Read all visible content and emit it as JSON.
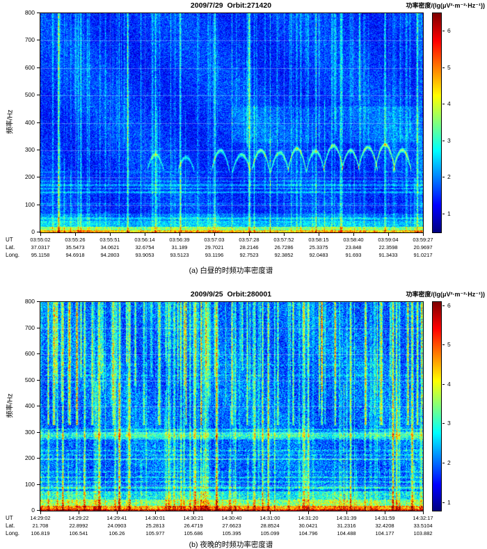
{
  "chart_data": [
    {
      "type": "heatmap",
      "panel": "a",
      "title": "2009/7/29  Orbit:271420",
      "caption": "(a) 白昼的时频功率密度谱",
      "colorbar_label": "功率密度/(lg(μV²·m⁻²·Hz⁻¹))",
      "ylabel": "频率/Hz",
      "ylim": [
        0,
        800
      ],
      "y_ticks": [
        0,
        100,
        200,
        300,
        400,
        500,
        600,
        700,
        800
      ],
      "colorbar_ticks": [
        1,
        2,
        3,
        4,
        5,
        6
      ],
      "colorbar_range": [
        0.5,
        6.5
      ],
      "colormap": "jet",
      "grid": true,
      "description": "Daytime time-frequency power spectral density spectrogram: dark-blue background with thin cyan/green vertical burst streaks, bright yellow-green band below ~20 Hz, faint horizontal lines near 50-220 Hz and rising whistler-like arcs near 230-330 Hz in the right half.",
      "x_axis_rows": [
        {
          "label": "UT",
          "values": [
            "03:55:02",
            "03:55:26",
            "03:55:51",
            "03:56:14",
            "03:56:39",
            "03:57:03",
            "03:57:28",
            "03:57:52",
            "03:58:15",
            "03:58:40",
            "03:59:04",
            "03:59:27"
          ]
        },
        {
          "label": "Lat.",
          "values": [
            "37.0317",
            "35.5473",
            "34.0621",
            "32.6754",
            "31.189",
            "29.7021",
            "28.2146",
            "26.7286",
            "25.3375",
            "23.848",
            "22.3598",
            "20.9697"
          ]
        },
        {
          "label": "Long.",
          "values": [
            "95.1158",
            "94.6918",
            "94.2803",
            "93.9053",
            "93.5123",
            "93.1196",
            "92.7523",
            "92.3852",
            "92.0483",
            "91.693",
            "91.3433",
            "91.0217"
          ]
        }
      ],
      "render": {
        "seed": 20090729,
        "base": 1.55,
        "noise": 0.55,
        "bands": [
          {
            "f0": 0,
            "f1": 10,
            "add": 3.0
          },
          {
            "f0": 10,
            "f1": 22,
            "add": 2.0
          },
          {
            "f0": 22,
            "f1": 45,
            "add": 0.9
          },
          {
            "f0": 45,
            "f1": 70,
            "add": 0.4
          }
        ],
        "hlines": [
          {
            "f": 52,
            "add": 0.8,
            "w": 4
          },
          {
            "f": 105,
            "add": 0.45,
            "w": 3
          },
          {
            "f": 148,
            "add": 0.85,
            "w": 4
          },
          {
            "f": 161,
            "add": 0.7,
            "w": 3
          },
          {
            "f": 174,
            "add": 0.85,
            "w": 4
          },
          {
            "f": 188,
            "add": 0.5,
            "w": 3
          },
          {
            "f": 222,
            "add": 0.35,
            "w": 3
          }
        ],
        "streaks": {
          "count": 110,
          "strength": [
            0.25,
            0.85
          ],
          "max_width": 1.6,
          "partial_f0": 250
        },
        "bright_streaks": [
          {
            "x": 0.047,
            "add": 2.4,
            "w": 2
          },
          {
            "x": 0.105,
            "add": 1.2,
            "w": 2
          },
          {
            "x": 0.155,
            "add": 0.9,
            "w": 1
          },
          {
            "x": 0.205,
            "add": 1.1,
            "w": 1
          },
          {
            "x": 0.228,
            "add": 1.5,
            "w": 2
          },
          {
            "x": 0.262,
            "add": 1.0,
            "w": 1
          },
          {
            "x": 0.3,
            "add": 1.2,
            "w": 2
          },
          {
            "x": 0.34,
            "add": 0.9,
            "w": 1
          },
          {
            "x": 0.365,
            "add": 1.4,
            "w": 2
          },
          {
            "x": 0.41,
            "add": 1.0,
            "w": 1
          },
          {
            "x": 0.455,
            "add": 1.1,
            "w": 1
          },
          {
            "x": 0.5,
            "add": 1.0,
            "w": 1
          },
          {
            "x": 0.545,
            "add": 1.2,
            "w": 2
          },
          {
            "x": 0.6,
            "add": 1.0,
            "w": 1
          },
          {
            "x": 0.655,
            "add": 1.1,
            "w": 1
          },
          {
            "x": 0.72,
            "add": 1.0,
            "w": 1
          },
          {
            "x": 0.785,
            "add": 1.3,
            "w": 2
          },
          {
            "x": 0.845,
            "add": 1.1,
            "w": 1
          },
          {
            "x": 0.9,
            "add": 1.4,
            "w": 2
          },
          {
            "x": 0.955,
            "add": 1.2,
            "w": 1
          },
          {
            "x": 0.985,
            "add": 1.5,
            "w": 2
          }
        ],
        "arcs": [
          {
            "x": 0.3,
            "f_peak": 285,
            "f_base": 235,
            "hw": 0.02,
            "add": 1.2
          },
          {
            "x": 0.38,
            "f_peak": 275,
            "f_base": 230,
            "hw": 0.02,
            "add": 1.2
          },
          {
            "x": 0.47,
            "f_peak": 300,
            "f_base": 235,
            "hw": 0.022,
            "add": 1.7
          },
          {
            "x": 0.525,
            "f_peak": 285,
            "f_base": 230,
            "hw": 0.022,
            "add": 1.6
          },
          {
            "x": 0.575,
            "f_peak": 300,
            "f_base": 235,
            "hw": 0.022,
            "add": 1.7
          },
          {
            "x": 0.625,
            "f_peak": 292,
            "f_base": 232,
            "hw": 0.022,
            "add": 1.6
          },
          {
            "x": 0.67,
            "f_peak": 308,
            "f_base": 238,
            "hw": 0.022,
            "add": 1.8
          },
          {
            "x": 0.718,
            "f_peak": 298,
            "f_base": 233,
            "hw": 0.022,
            "add": 1.7
          },
          {
            "x": 0.765,
            "f_peak": 318,
            "f_base": 240,
            "hw": 0.024,
            "add": 1.9
          },
          {
            "x": 0.81,
            "f_peak": 300,
            "f_base": 235,
            "hw": 0.022,
            "add": 1.8
          },
          {
            "x": 0.855,
            "f_peak": 312,
            "f_base": 238,
            "hw": 0.024,
            "add": 2.0
          },
          {
            "x": 0.9,
            "f_peak": 322,
            "f_base": 242,
            "hw": 0.024,
            "add": 2.0
          },
          {
            "x": 0.945,
            "f_peak": 302,
            "f_base": 236,
            "hw": 0.022,
            "add": 1.9
          }
        ],
        "haze": {
          "x0": 0.5,
          "x1": 0.99,
          "f0": 330,
          "f1": 460,
          "add": 0.3
        }
      }
    },
    {
      "type": "heatmap",
      "panel": "b",
      "title": "2009/9/25  Orbit:280001",
      "caption": "(b) 夜晚的时频功率密度谱",
      "colorbar_label": "功率密度/(lg(μV²·m⁻²·Hz⁻¹))",
      "ylabel": "频率/Hz",
      "ylim": [
        0,
        800
      ],
      "y_ticks": [
        0,
        100,
        200,
        300,
        400,
        500,
        600,
        700,
        800
      ],
      "colorbar_ticks": [
        1,
        2,
        3,
        4,
        5,
        6
      ],
      "colorbar_range": [
        0.8,
        6.1
      ],
      "colormap": "jet",
      "grid": true,
      "description": "Nighttime time-frequency power spectral density spectrogram: much brighter activity, dense cyan/green/yellow vertical streaks from ~330-800 Hz, strong green band near 280-310 Hz, horizontal structure near 90-230 Hz and an intense red/orange band below ~25 Hz.",
      "x_axis_rows": [
        {
          "label": "UT",
          "values": [
            "14:29:02",
            "14:29:22",
            "14:29:41",
            "14:30:01",
            "14:30:21",
            "14:30:40",
            "14:31:00",
            "14:31:20",
            "14:31:39",
            "14:31:59",
            "14:32:17"
          ]
        },
        {
          "label": "Lat.",
          "values": [
            "21.708",
            "22.8992",
            "24.0903",
            "25.2813",
            "26.4719",
            "27.6623",
            "28.8524",
            "30.0421",
            "31.2316",
            "32.4208",
            "33.5104"
          ]
        },
        {
          "label": "Long.",
          "values": [
            "106.819",
            "106.541",
            "106.26",
            "105.977",
            "105.686",
            "105.395",
            "105.099",
            "104.796",
            "104.488",
            "104.177",
            "103.882"
          ]
        }
      ],
      "render": {
        "seed": 20090925,
        "base": 2.0,
        "noise": 0.7,
        "bands": [
          {
            "f0": 0,
            "f1": 8,
            "add": 3.6
          },
          {
            "f0": 8,
            "f1": 20,
            "add": 2.6
          },
          {
            "f0": 20,
            "f1": 45,
            "add": 1.5
          },
          {
            "f0": 45,
            "f1": 75,
            "add": 0.8
          }
        ],
        "hlines": [
          {
            "f": 90,
            "add": 1.0,
            "w": 5
          },
          {
            "f": 112,
            "add": 0.7,
            "w": 3
          },
          {
            "f": 130,
            "add": 0.8,
            "w": 3
          },
          {
            "f": 150,
            "add": 0.5,
            "w": 3
          },
          {
            "f": 198,
            "add": 0.8,
            "w": 3
          },
          {
            "f": 215,
            "add": 0.6,
            "w": 3
          },
          {
            "f": 232,
            "add": 0.5,
            "w": 3
          },
          {
            "f": 290,
            "add": 1.1,
            "w": 16
          },
          {
            "f": 312,
            "add": 0.6,
            "w": 5
          },
          {
            "f": 520,
            "add": 0.35,
            "w": 3
          },
          {
            "f": 560,
            "add": 0.3,
            "w": 3
          }
        ],
        "streaks": {
          "count": 150,
          "strength": [
            0.4,
            1.4
          ],
          "max_width": 2.2,
          "partial_f0": 330
        },
        "bright_streaks": [
          {
            "x": 0.02,
            "add": 2.0,
            "w": 2,
            "f0": 330
          },
          {
            "x": 0.035,
            "add": 2.4,
            "w": 3,
            "f0": 330
          },
          {
            "x": 0.058,
            "add": 2.0,
            "w": 2
          },
          {
            "x": 0.075,
            "add": 2.6,
            "w": 3,
            "f0": 330
          },
          {
            "x": 0.095,
            "add": 2.2,
            "w": 2,
            "f0": 330
          },
          {
            "x": 0.115,
            "add": 1.8,
            "w": 2
          },
          {
            "x": 0.135,
            "add": 2.0,
            "w": 2,
            "f0": 330
          },
          {
            "x": 0.19,
            "add": 1.6,
            "w": 2,
            "f0": 330
          },
          {
            "x": 0.23,
            "add": 1.8,
            "w": 2
          },
          {
            "x": 0.27,
            "add": 1.5,
            "w": 2,
            "f0": 330
          },
          {
            "x": 0.31,
            "add": 2.0,
            "w": 3,
            "f0": 330
          },
          {
            "x": 0.335,
            "add": 1.7,
            "w": 2
          },
          {
            "x": 0.38,
            "add": 1.5,
            "w": 2,
            "f0": 330
          },
          {
            "x": 0.42,
            "add": 1.8,
            "w": 2,
            "f0": 330
          },
          {
            "x": 0.46,
            "add": 1.6,
            "w": 2
          },
          {
            "x": 0.5,
            "add": 1.9,
            "w": 2,
            "f0": 330
          },
          {
            "x": 0.54,
            "add": 1.6,
            "w": 2,
            "f0": 330
          },
          {
            "x": 0.58,
            "add": 1.8,
            "w": 2
          },
          {
            "x": 0.62,
            "add": 1.5,
            "w": 2,
            "f0": 330
          },
          {
            "x": 0.66,
            "add": 1.7,
            "w": 2,
            "f0": 330
          },
          {
            "x": 0.7,
            "add": 1.6,
            "w": 2
          },
          {
            "x": 0.735,
            "add": 1.9,
            "w": 2,
            "f0": 330
          },
          {
            "x": 0.77,
            "add": 1.7,
            "w": 2,
            "f0": 330
          },
          {
            "x": 0.81,
            "add": 2.0,
            "w": 2
          },
          {
            "x": 0.85,
            "add": 1.8,
            "w": 2,
            "f0": 330
          },
          {
            "x": 0.89,
            "add": 2.2,
            "w": 3,
            "f0": 330
          },
          {
            "x": 0.93,
            "add": 2.0,
            "w": 2
          },
          {
            "x": 0.96,
            "add": 2.3,
            "w": 2,
            "f0": 330
          },
          {
            "x": 0.985,
            "add": 2.0,
            "w": 2,
            "f0": 330
          }
        ]
      }
    }
  ]
}
